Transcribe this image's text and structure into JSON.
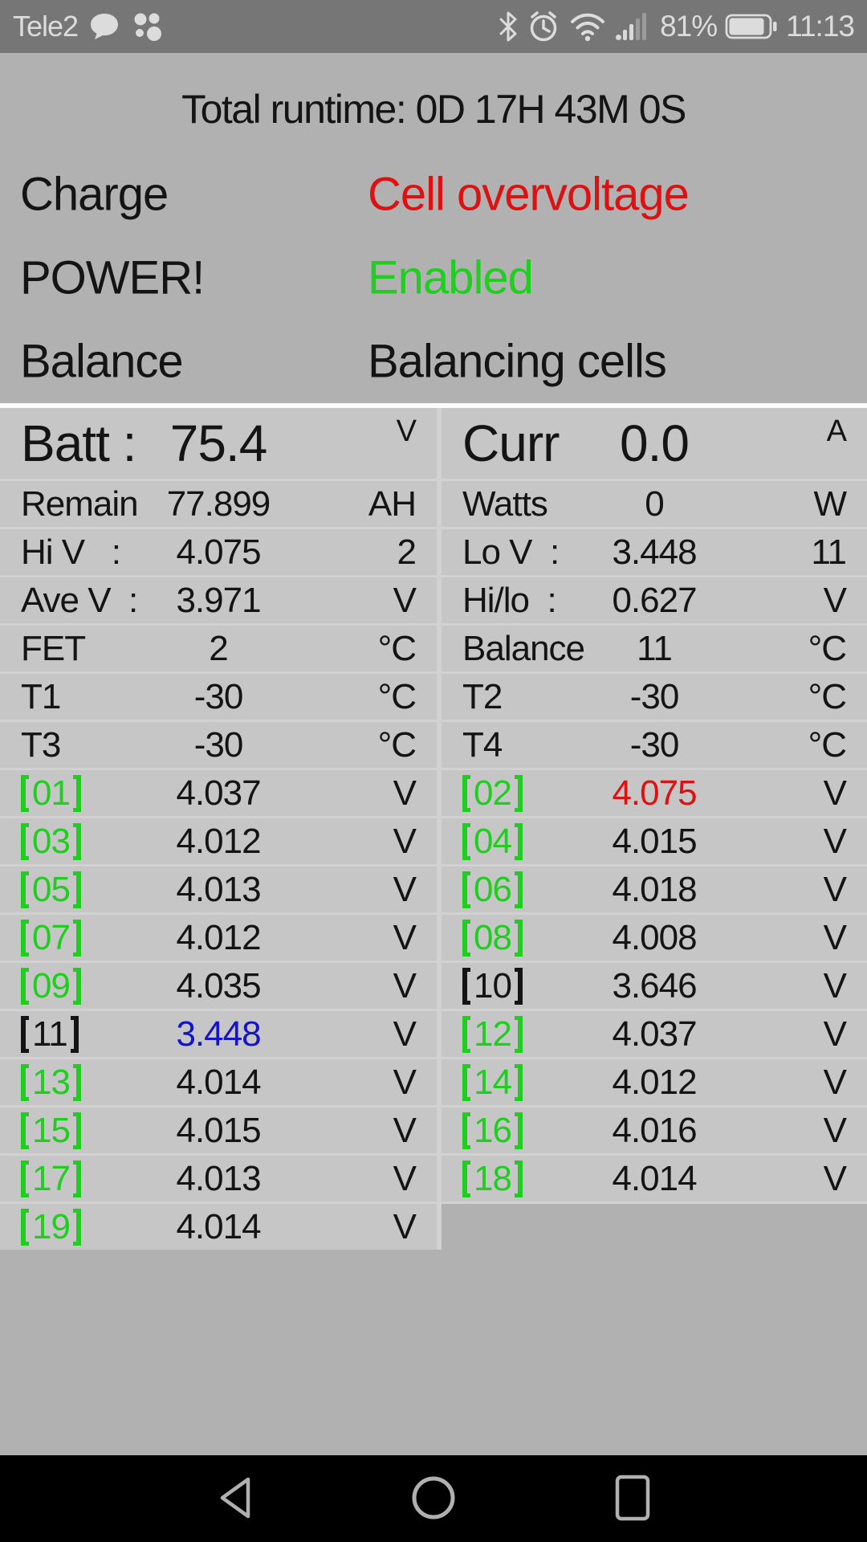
{
  "colors": {
    "page_bg": "#b1b1b1",
    "cell_bg": "#c6c6c6",
    "divider": "#d2d2d2",
    "separator": "#fafafa",
    "statusbar_bg": "#767676",
    "statusbar_fg": "#dcdcdc",
    "navbar_bg": "#000000",
    "navbar_icon": "#b0b0b0",
    "text": "#141414",
    "red": "#dd1111",
    "green": "#1fce1f",
    "blue": "#1414cc"
  },
  "status_bar": {
    "carrier": "Tele2",
    "icons": [
      "chat-bubble-icon",
      "dots-grid-icon",
      "bluetooth-icon",
      "alarm-icon",
      "wifi-icon",
      "signal-icon",
      "battery-icon"
    ],
    "battery_percent": "81%",
    "time": "11:13"
  },
  "runtime_title": "Total runtime: 0D 17H 43M 0S",
  "status_rows": [
    {
      "label": "Charge",
      "value": "Cell overvoltage",
      "value_color": "#dd1111"
    },
    {
      "label": "POWER!",
      "value": "Enabled",
      "value_color": "#1fce1f"
    },
    {
      "label": "Balance",
      "value": "Balancing cells",
      "value_color": "#141414"
    }
  ],
  "table": {
    "header": {
      "left": {
        "label": "Batt :",
        "value": "75.4",
        "unit": "V"
      },
      "right": {
        "label": "Curr",
        "value": "0.0",
        "unit": "A"
      }
    },
    "summary_rows": [
      {
        "left": {
          "label": "Remain",
          "value": "77.899",
          "unit": "AH"
        },
        "right": {
          "label": "Watts",
          "value": "0",
          "unit": "W"
        }
      },
      {
        "left": {
          "label": "Hi V   :",
          "value": "4.075",
          "unit": "2"
        },
        "right": {
          "label": "Lo V  :",
          "value": "3.448",
          "unit": "11"
        }
      },
      {
        "left": {
          "label": "Ave V  :",
          "value": "3.971",
          "unit": "V"
        },
        "right": {
          "label": "Hi/lo  :",
          "value": "0.627",
          "unit": "V"
        }
      },
      {
        "left": {
          "label": "FET",
          "value": "2",
          "unit": "°C"
        },
        "right": {
          "label": "Balance",
          "value": "11",
          "unit": "°C"
        }
      },
      {
        "left": {
          "label": "T1",
          "value": "-30",
          "unit": "°C"
        },
        "right": {
          "label": "T2",
          "value": "-30",
          "unit": "°C"
        }
      },
      {
        "left": {
          "label": "T3",
          "value": "-30",
          "unit": "°C"
        },
        "right": {
          "label": "T4",
          "value": "-30",
          "unit": "°C"
        }
      }
    ],
    "cell_rows": [
      {
        "left": {
          "num": "01",
          "label": "【01】",
          "label_color": "#1fce1f",
          "value": "4.037",
          "value_color": "#141414",
          "unit": "V"
        },
        "right": {
          "num": "02",
          "label": "【02】",
          "label_color": "#1fce1f",
          "value": "4.075",
          "value_color": "#dd1111",
          "unit": "V"
        }
      },
      {
        "left": {
          "num": "03",
          "label": "【03】",
          "label_color": "#1fce1f",
          "value": "4.012",
          "value_color": "#141414",
          "unit": "V"
        },
        "right": {
          "num": "04",
          "label": "【04】",
          "label_color": "#1fce1f",
          "value": "4.015",
          "value_color": "#141414",
          "unit": "V"
        }
      },
      {
        "left": {
          "num": "05",
          "label": "【05】",
          "label_color": "#1fce1f",
          "value": "4.013",
          "value_color": "#141414",
          "unit": "V"
        },
        "right": {
          "num": "06",
          "label": "【06】",
          "label_color": "#1fce1f",
          "value": "4.018",
          "value_color": "#141414",
          "unit": "V"
        }
      },
      {
        "left": {
          "num": "07",
          "label": "【07】",
          "label_color": "#1fce1f",
          "value": "4.012",
          "value_color": "#141414",
          "unit": "V"
        },
        "right": {
          "num": "08",
          "label": "【08】",
          "label_color": "#1fce1f",
          "value": "4.008",
          "value_color": "#141414",
          "unit": "V"
        }
      },
      {
        "left": {
          "num": "09",
          "label": "【09】",
          "label_color": "#1fce1f",
          "value": "4.035",
          "value_color": "#141414",
          "unit": "V"
        },
        "right": {
          "num": "10",
          "label": "【10】",
          "label_color": "#141414",
          "value": "3.646",
          "value_color": "#141414",
          "unit": "V"
        }
      },
      {
        "left": {
          "num": "11",
          "label": "【11】",
          "label_color": "#141414",
          "value": "3.448",
          "value_color": "#1414cc",
          "unit": "V"
        },
        "right": {
          "num": "12",
          "label": "【12】",
          "label_color": "#1fce1f",
          "value": "4.037",
          "value_color": "#141414",
          "unit": "V"
        }
      },
      {
        "left": {
          "num": "13",
          "label": "【13】",
          "label_color": "#1fce1f",
          "value": "4.014",
          "value_color": "#141414",
          "unit": "V"
        },
        "right": {
          "num": "14",
          "label": "【14】",
          "label_color": "#1fce1f",
          "value": "4.012",
          "value_color": "#141414",
          "unit": "V"
        }
      },
      {
        "left": {
          "num": "15",
          "label": "【15】",
          "label_color": "#1fce1f",
          "value": "4.015",
          "value_color": "#141414",
          "unit": "V"
        },
        "right": {
          "num": "16",
          "label": "【16】",
          "label_color": "#1fce1f",
          "value": "4.016",
          "value_color": "#141414",
          "unit": "V"
        }
      },
      {
        "left": {
          "num": "17",
          "label": "【17】",
          "label_color": "#1fce1f",
          "value": "4.013",
          "value_color": "#141414",
          "unit": "V"
        },
        "right": {
          "num": "18",
          "label": "【18】",
          "label_color": "#1fce1f",
          "value": "4.014",
          "value_color": "#141414",
          "unit": "V"
        }
      },
      {
        "left": {
          "num": "19",
          "label": "【19】",
          "label_color": "#1fce1f",
          "value": "4.014",
          "value_color": "#141414",
          "unit": "V"
        },
        "right": null
      }
    ]
  },
  "nav_bar": {
    "buttons": [
      "back",
      "home",
      "recents"
    ]
  }
}
